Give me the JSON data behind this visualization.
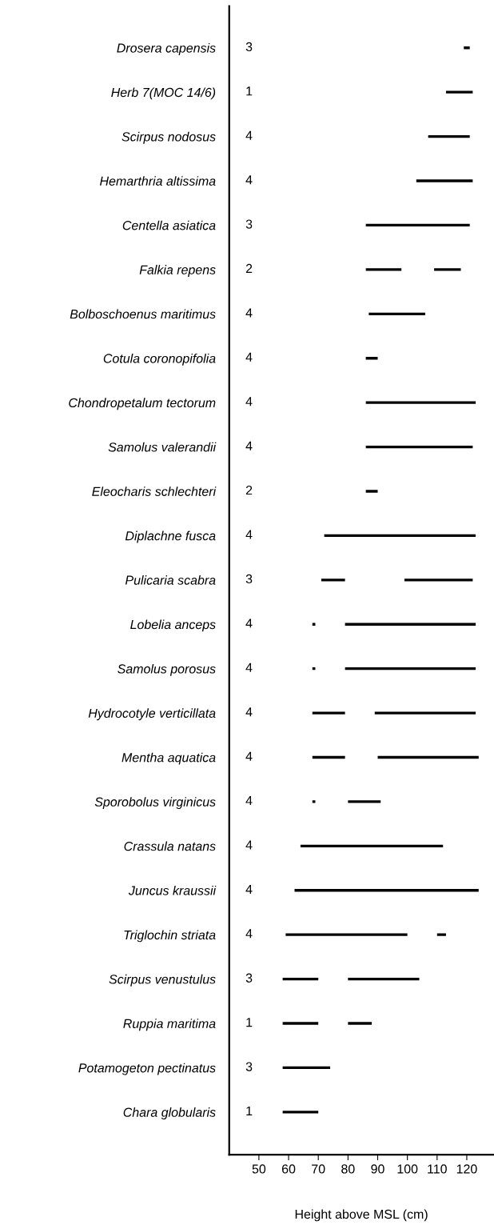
{
  "chart_data": {
    "type": "bar",
    "orientation": "horizontal",
    "xlabel": "Height above MSL (cm)",
    "categories": [
      "Drosera capensis",
      "Herb 7(MOC 14/6)",
      "Scirpus nodosus",
      "Hemarthria altissima",
      "Centella asiatica",
      "Falkia repens",
      "Bolboschoenus maritimus",
      "Cotula coronopifolia",
      "Chondropetalum tectorum",
      "Samolus valerandii",
      "Eleocharis schlechteri",
      "Diplachne fusca",
      "Pulicaria scabra",
      "Lobelia anceps",
      "Samolus porosus",
      "Hydrocotyle verticillata",
      "Mentha aquatica",
      "Sporobolus virginicus",
      "Crassula natans",
      "Juncus kraussii",
      "Triglochin striata",
      "Scirpus venustulus",
      "Ruppia maritima",
      "Potamogeton pectinatus",
      "Chara globularis"
    ],
    "xlim": [
      40,
      129
    ],
    "xticks": [
      50,
      60,
      70,
      80,
      90,
      100,
      110,
      120
    ],
    "grid": false,
    "legend": false,
    "series": [
      {
        "color": "#000000",
        "base": [
          119,
          113,
          107,
          103,
          86,
          86,
          87,
          86,
          86,
          86,
          86,
          72,
          71,
          68,
          68,
          68,
          68,
          68,
          64,
          62,
          59,
          58,
          58,
          58,
          58
        ],
        "values": [
          2,
          9,
          14,
          19,
          35,
          12,
          19,
          4,
          37,
          36,
          4,
          51,
          8,
          1,
          1,
          11,
          11,
          1,
          48,
          62,
          41,
          12,
          12,
          16,
          12
        ]
      },
      {
        "color": "#000000",
        "base": [
          null,
          null,
          null,
          null,
          null,
          109,
          null,
          null,
          null,
          null,
          null,
          null,
          99,
          79,
          79,
          89,
          90,
          80,
          null,
          null,
          110,
          80,
          80,
          null,
          null
        ],
        "values": [
          null,
          null,
          null,
          null,
          null,
          9,
          null,
          null,
          null,
          null,
          null,
          null,
          23,
          44,
          44,
          34,
          34,
          11,
          null,
          null,
          3,
          24,
          8,
          null,
          null
        ]
      }
    ],
    "annotations": [
      "3",
      "1",
      "4",
      "4",
      "3",
      "2",
      "4",
      "4",
      "4",
      "4",
      "2",
      "4",
      "3",
      "4",
      "4",
      "4",
      "4",
      "4",
      "4",
      "4",
      "4",
      "3",
      "1",
      "3",
      "1"
    ]
  }
}
